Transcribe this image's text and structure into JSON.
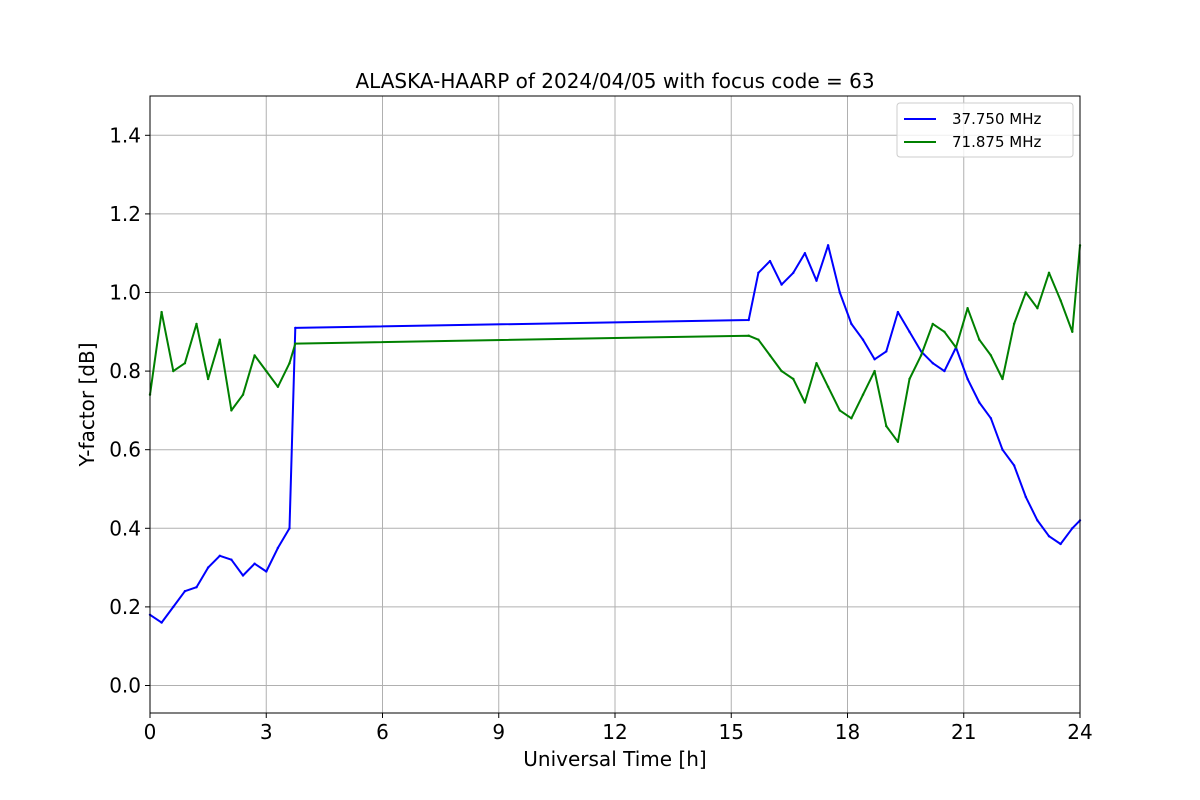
{
  "chart_data": {
    "type": "line",
    "title": "ALASKA-HAARP of 2024/04/05 with focus code = 63",
    "xlabel": "Universal Time [h]",
    "ylabel": "Y-factor [dB]",
    "xlim": [
      0,
      24
    ],
    "ylim": [
      -0.07,
      1.5
    ],
    "xticks": [
      0,
      3,
      6,
      9,
      12,
      15,
      18,
      21,
      24
    ],
    "yticks": [
      0.0,
      0.2,
      0.4,
      0.6,
      0.8,
      1.0,
      1.2,
      1.4
    ],
    "xtick_labels": [
      "0",
      "3",
      "6",
      "9",
      "12",
      "15",
      "18",
      "21",
      "24"
    ],
    "ytick_labels": [
      "0.0",
      "0.2",
      "0.4",
      "0.6",
      "0.8",
      "1.0",
      "1.2",
      "1.4"
    ],
    "grid": true,
    "legend_position": "top-right",
    "series": [
      {
        "name": "37.750 MHz",
        "color": "#0000ff",
        "x": [
          0.0,
          0.3,
          0.6,
          0.9,
          1.2,
          1.5,
          1.8,
          2.1,
          2.4,
          2.7,
          3.0,
          3.3,
          3.6,
          3.75,
          15.45,
          15.7,
          16.0,
          16.3,
          16.6,
          16.9,
          17.2,
          17.5,
          17.8,
          18.1,
          18.4,
          18.7,
          19.0,
          19.3,
          19.6,
          19.9,
          20.2,
          20.5,
          20.8,
          21.1,
          21.4,
          21.7,
          22.0,
          22.3,
          22.6,
          22.9,
          23.2,
          23.5,
          23.8,
          24.0
        ],
        "y": [
          0.18,
          0.16,
          0.2,
          0.24,
          0.25,
          0.3,
          0.33,
          0.32,
          0.28,
          0.31,
          0.29,
          0.35,
          0.4,
          0.91,
          0.93,
          1.05,
          1.08,
          1.02,
          1.05,
          1.1,
          1.03,
          1.12,
          1.0,
          0.92,
          0.88,
          0.83,
          0.85,
          0.95,
          0.9,
          0.85,
          0.82,
          0.8,
          0.86,
          0.78,
          0.72,
          0.68,
          0.6,
          0.56,
          0.48,
          0.42,
          0.38,
          0.36,
          0.4,
          0.42
        ]
      },
      {
        "name": "71.875 MHz",
        "color": "#008000",
        "x": [
          0.0,
          0.3,
          0.6,
          0.9,
          1.2,
          1.5,
          1.8,
          2.1,
          2.4,
          2.7,
          3.0,
          3.3,
          3.6,
          3.75,
          15.45,
          15.7,
          16.0,
          16.3,
          16.6,
          16.9,
          17.2,
          17.5,
          17.8,
          18.1,
          18.4,
          18.7,
          19.0,
          19.3,
          19.6,
          19.9,
          20.2,
          20.5,
          20.8,
          21.1,
          21.4,
          21.7,
          22.0,
          22.3,
          22.6,
          22.9,
          23.2,
          23.5,
          23.8,
          24.0
        ],
        "y": [
          0.74,
          0.95,
          0.8,
          0.82,
          0.92,
          0.78,
          0.88,
          0.7,
          0.74,
          0.84,
          0.8,
          0.76,
          0.82,
          0.87,
          0.89,
          0.88,
          0.84,
          0.8,
          0.78,
          0.72,
          0.82,
          0.76,
          0.7,
          0.68,
          0.74,
          0.8,
          0.66,
          0.62,
          0.78,
          0.84,
          0.92,
          0.9,
          0.86,
          0.96,
          0.88,
          0.84,
          0.78,
          0.92,
          1.0,
          0.96,
          1.05,
          0.98,
          0.9,
          1.12
        ]
      }
    ]
  }
}
